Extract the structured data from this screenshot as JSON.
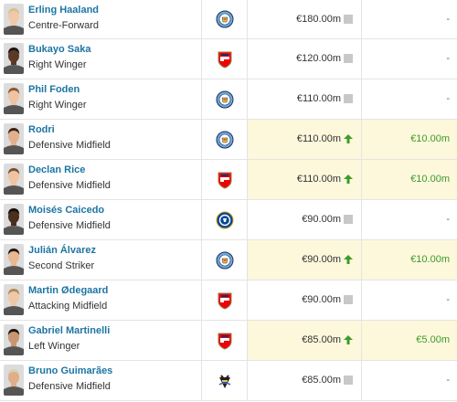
{
  "players": [
    {
      "name": "Erling Haaland",
      "position": "Centre-Forward",
      "club": "man-city",
      "value": "€180.00m",
      "trend": "none",
      "change": "-",
      "highlight": false,
      "skin": "#f2c9a8",
      "hair": "#d9c08a"
    },
    {
      "name": "Bukayo Saka",
      "position": "Right Winger",
      "club": "arsenal",
      "value": "€120.00m",
      "trend": "none",
      "change": "-",
      "highlight": false,
      "skin": "#5a3a26",
      "hair": "#1c1410"
    },
    {
      "name": "Phil Foden",
      "position": "Right Winger",
      "club": "man-city",
      "value": "€110.00m",
      "trend": "none",
      "change": "-",
      "highlight": false,
      "skin": "#f0c4a2",
      "hair": "#8a5a32"
    },
    {
      "name": "Rodri",
      "position": "Defensive Midfield",
      "club": "man-city",
      "value": "€110.00m",
      "trend": "up",
      "change": "€10.00m",
      "highlight": true,
      "skin": "#e2b08c",
      "hair": "#3a2418"
    },
    {
      "name": "Declan Rice",
      "position": "Defensive Midfield",
      "club": "arsenal",
      "value": "€110.00m",
      "trend": "up",
      "change": "€10.00m",
      "highlight": true,
      "skin": "#f0c4a2",
      "hair": "#7a5230"
    },
    {
      "name": "Moisés Caicedo",
      "position": "Defensive Midfield",
      "club": "chelsea",
      "value": "€90.00m",
      "trend": "none",
      "change": "-",
      "highlight": false,
      "skin": "#4a2e1e",
      "hair": "#140e0a"
    },
    {
      "name": "Julián Álvarez",
      "position": "Second Striker",
      "club": "man-city",
      "value": "€90.00m",
      "trend": "up",
      "change": "€10.00m",
      "highlight": true,
      "skin": "#e8b892",
      "hair": "#241810"
    },
    {
      "name": "Martin Ødegaard",
      "position": "Attacking Midfield",
      "club": "arsenal",
      "value": "€90.00m",
      "trend": "none",
      "change": "-",
      "highlight": false,
      "skin": "#f0c8a8",
      "hair": "#b08a58"
    },
    {
      "name": "Gabriel Martinelli",
      "position": "Left Winger",
      "club": "arsenal",
      "value": "€85.00m",
      "trend": "up",
      "change": "€5.00m",
      "highlight": true,
      "skin": "#c89670",
      "hair": "#201410"
    },
    {
      "name": "Bruno Guimarães",
      "position": "Defensive Midfield",
      "club": "newcastle",
      "value": "€85.00m",
      "trend": "none",
      "change": "-",
      "highlight": false,
      "skin": "#e0ae88",
      "hair": "#d8d0b8"
    }
  ],
  "colors": {
    "link": "#1d75a3",
    "positive": "#3d9c2a",
    "highlight_bg": "#fdf7dc",
    "trend_none": "#c8c8c8"
  }
}
